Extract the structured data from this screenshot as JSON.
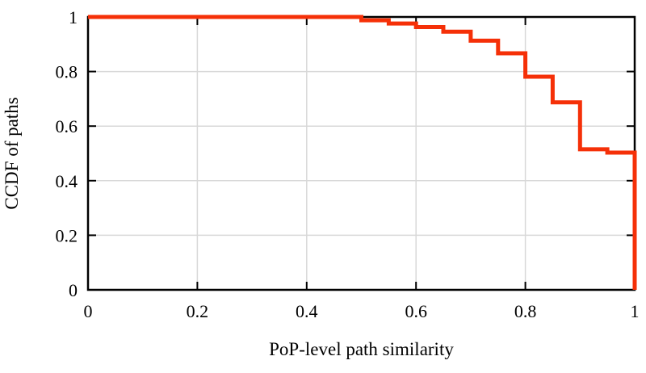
{
  "figure": {
    "background": "#ffffff"
  },
  "chart_data": {
    "type": "line",
    "subtype": "step-function-ccdf",
    "title": "",
    "xlabel": "PoP-level path similarity",
    "ylabel": "CCDF of paths",
    "xlim": [
      0,
      1
    ],
    "ylim": [
      0,
      1
    ],
    "grid": true,
    "legend": "none",
    "xticks": {
      "values": [
        0,
        0.2,
        0.4,
        0.6,
        0.8,
        1
      ],
      "labels": [
        "0",
        "0.2",
        "0.4",
        "0.6",
        "0.8",
        "1"
      ]
    },
    "yticks": {
      "values": [
        0,
        0.2,
        0.4,
        0.6,
        0.8,
        1
      ],
      "labels": [
        "0",
        "0.2",
        "0.4",
        "0.6",
        "0.8",
        "1"
      ]
    },
    "colors": {
      "line": "#f53008",
      "grid": "#d8d8d8",
      "axis": "#000000"
    },
    "series": [
      {
        "name": "CCDF of paths",
        "color": "#f53008",
        "points": [
          [
            0.0,
            1.0
          ],
          [
            0.5,
            1.0
          ],
          [
            0.5,
            0.988
          ],
          [
            0.55,
            0.988
          ],
          [
            0.55,
            0.976
          ],
          [
            0.6,
            0.976
          ],
          [
            0.6,
            0.963
          ],
          [
            0.65,
            0.963
          ],
          [
            0.65,
            0.946
          ],
          [
            0.7,
            0.946
          ],
          [
            0.7,
            0.913
          ],
          [
            0.75,
            0.913
          ],
          [
            0.75,
            0.867
          ],
          [
            0.8,
            0.867
          ],
          [
            0.8,
            0.781
          ],
          [
            0.85,
            0.781
          ],
          [
            0.85,
            0.687
          ],
          [
            0.9,
            0.687
          ],
          [
            0.9,
            0.515
          ],
          [
            0.95,
            0.515
          ],
          [
            0.95,
            0.503
          ],
          [
            1.0,
            0.503
          ],
          [
            1.0,
            0.0
          ]
        ]
      }
    ]
  }
}
